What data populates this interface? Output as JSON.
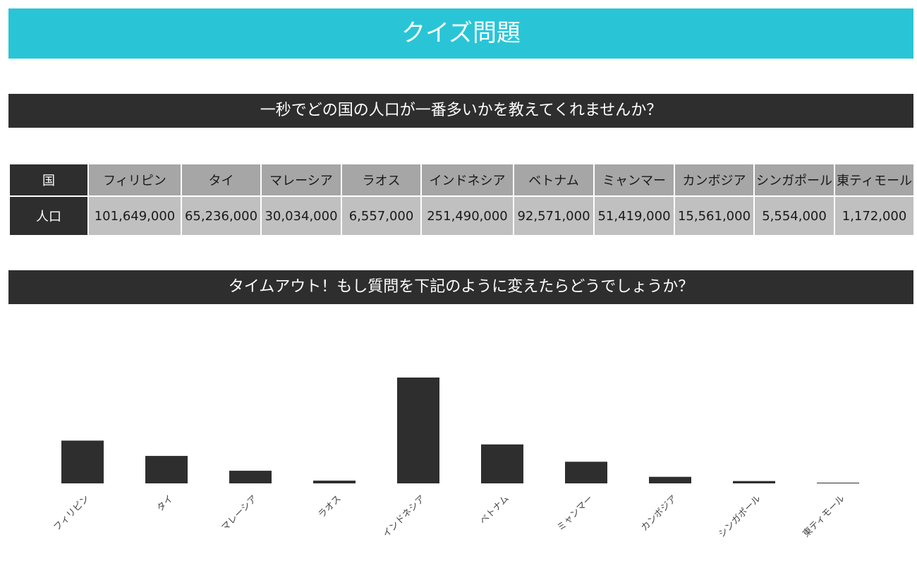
{
  "header": {
    "title": "クイズ問題"
  },
  "question": {
    "text": "一秒でどの国の人口が一番多いかを教えてくれませんか？"
  },
  "table": {
    "country_label": "国",
    "population_label": "人口",
    "countries": [
      "フィリピン",
      "タイ",
      "マレーシア",
      "ラオス",
      "インドネシア",
      "ベトナム",
      "ミャンマー",
      "カンボジア",
      "シンガポール",
      "東ティモール"
    ],
    "populations": [
      "101,649,000",
      "65,236,000",
      "30,034,000",
      "6,557,000",
      "251,490,000",
      "92,571,000",
      "51,419,000",
      "15,561,000",
      "5,554,000",
      "1,172,000"
    ]
  },
  "timeout": {
    "text": "タイムアウト！もし質問を下記のように変えたらどうでしょうか？"
  },
  "colors": {
    "accent": "#29c5d6",
    "dark": "#2e2e2e",
    "header_cell": "#a6a6a6",
    "value_cell": "#c0c0c0"
  },
  "chart_data": {
    "type": "bar",
    "categories": [
      "フィリピン",
      "タイ",
      "マレーシア",
      "ラオス",
      "インドネシア",
      "ベトナム",
      "ミャンマー",
      "カンボジア",
      "シンガポール",
      "東ティモール"
    ],
    "values": [
      101649000,
      65236000,
      30034000,
      6557000,
      251490000,
      92571000,
      51419000,
      15561000,
      5554000,
      1172000
    ],
    "title": "",
    "xlabel": "",
    "ylabel": "",
    "ylim": [
      0,
      251490000
    ],
    "grid": false,
    "legend": "none"
  }
}
